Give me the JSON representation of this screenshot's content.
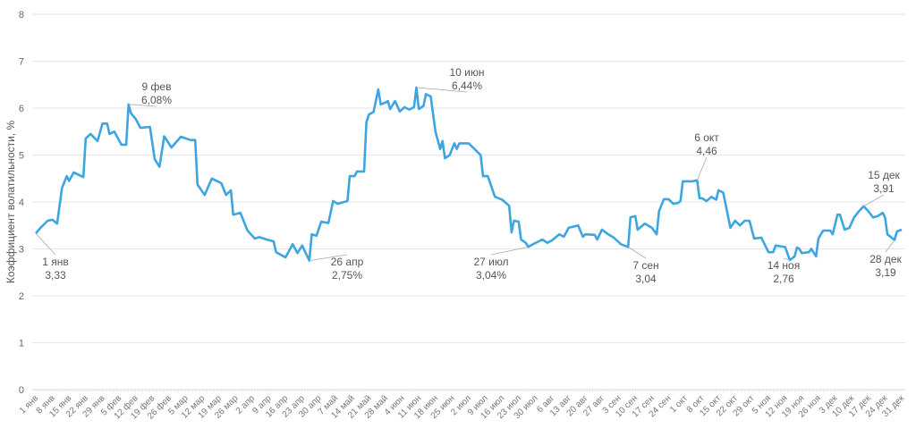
{
  "chart_data": {
    "type": "line",
    "title": "",
    "xlabel": "",
    "ylabel": "Коэффициент волатильности, %",
    "ylim": [
      0,
      8
    ],
    "yticks": [
      0,
      1,
      2,
      3,
      4,
      5,
      6,
      7,
      8
    ],
    "grid": true,
    "line_color": "#3da5e0",
    "x_unit": "day of year (0 = 1 янв)",
    "xticks": [
      "1 янв",
      "8 янв",
      "15 янв",
      "22 янв",
      "29 янв",
      "5 фев",
      "12 фев",
      "19 фев",
      "26 фев",
      "5 мар",
      "12 мар",
      "19 мар",
      "26 мар",
      "2 апр",
      "9 апр",
      "16 апр",
      "23 апр",
      "30 апр",
      "7 май",
      "14 май",
      "21 май",
      "28 май",
      "4 июн",
      "11 июн",
      "18 июн",
      "25 июн",
      "2 июл",
      "9 июл",
      "16 июл",
      "23 июл",
      "30 июл",
      "6 авг",
      "13 авг",
      "20 авг",
      "27 авг",
      "3 сен",
      "10 сен",
      "17 сен",
      "24 сен",
      "1 окт",
      "8 окт",
      "15 окт",
      "22 окт",
      "29 окт",
      "5 ноя",
      "12 ноя",
      "19 ноя",
      "26 ноя",
      "3 дек",
      "10 дек",
      "17 дек",
      "24 дек",
      "31 дек"
    ],
    "series": [
      {
        "name": "Коэффициент волатильности",
        "points": [
          [
            0,
            3.33
          ],
          [
            2,
            3.45
          ],
          [
            5,
            3.6
          ],
          [
            7,
            3.62
          ],
          [
            9,
            3.54
          ],
          [
            11,
            4.3
          ],
          [
            13,
            4.55
          ],
          [
            14,
            4.45
          ],
          [
            16,
            4.63
          ],
          [
            20,
            4.53
          ],
          [
            21,
            5.35
          ],
          [
            23,
            5.45
          ],
          [
            26,
            5.3
          ],
          [
            28,
            5.67
          ],
          [
            30,
            5.67
          ],
          [
            31,
            5.45
          ],
          [
            33,
            5.5
          ],
          [
            36,
            5.22
          ],
          [
            38,
            5.22
          ],
          [
            39,
            6.08
          ],
          [
            40,
            5.89
          ],
          [
            42,
            5.77
          ],
          [
            44,
            5.58
          ],
          [
            48,
            5.6
          ],
          [
            50,
            4.91
          ],
          [
            52,
            4.75
          ],
          [
            54,
            5.4
          ],
          [
            57,
            5.16
          ],
          [
            61,
            5.39
          ],
          [
            65,
            5.32
          ],
          [
            67,
            5.32
          ],
          [
            68,
            4.37
          ],
          [
            71,
            4.15
          ],
          [
            74,
            4.5
          ],
          [
            78,
            4.4
          ],
          [
            80,
            4.15
          ],
          [
            82,
            4.25
          ],
          [
            83,
            3.73
          ],
          [
            86,
            3.77
          ],
          [
            89,
            3.39
          ],
          [
            92,
            3.22
          ],
          [
            94,
            3.25
          ],
          [
            97,
            3.2
          ],
          [
            100,
            3.16
          ],
          [
            101,
            2.93
          ],
          [
            105,
            2.82
          ],
          [
            108,
            3.1
          ],
          [
            110,
            2.91
          ],
          [
            112,
            3.07
          ],
          [
            115,
            2.75
          ],
          [
            116,
            3.31
          ],
          [
            118,
            3.28
          ],
          [
            120,
            3.58
          ],
          [
            123,
            3.55
          ],
          [
            125,
            4.02
          ],
          [
            127,
            3.96
          ],
          [
            128,
            3.98
          ],
          [
            131,
            4.02
          ],
          [
            132,
            4.55
          ],
          [
            134,
            4.55
          ],
          [
            135,
            4.65
          ],
          [
            138,
            4.65
          ],
          [
            139,
            5.7
          ],
          [
            140,
            5.86
          ],
          [
            142,
            5.92
          ],
          [
            144,
            6.4
          ],
          [
            145,
            6.08
          ],
          [
            147,
            6.12
          ],
          [
            148,
            6.15
          ],
          [
            149,
            5.98
          ],
          [
            151,
            6.15
          ],
          [
            153,
            5.93
          ],
          [
            155,
            6.02
          ],
          [
            157,
            5.97
          ],
          [
            159,
            6.02
          ],
          [
            160,
            6.44
          ],
          [
            161,
            5.98
          ],
          [
            163,
            6.05
          ],
          [
            164,
            6.3
          ],
          [
            166,
            6.25
          ],
          [
            168,
            5.5
          ],
          [
            170,
            5.13
          ],
          [
            171,
            5.3
          ],
          [
            172,
            4.93
          ],
          [
            174,
            5.0
          ],
          [
            176,
            5.25
          ],
          [
            177,
            5.13
          ],
          [
            178,
            5.25
          ],
          [
            182,
            5.25
          ],
          [
            185,
            5.1
          ],
          [
            187,
            5.0
          ],
          [
            188,
            4.55
          ],
          [
            190,
            4.55
          ],
          [
            193,
            4.11
          ],
          [
            196,
            4.05
          ],
          [
            199,
            3.92
          ],
          [
            200,
            3.35
          ],
          [
            201,
            3.6
          ],
          [
            203,
            3.58
          ],
          [
            204,
            3.2
          ],
          [
            206,
            3.13
          ],
          [
            207,
            3.04
          ],
          [
            209,
            3.1
          ],
          [
            213,
            3.2
          ],
          [
            215,
            3.13
          ],
          [
            217,
            3.18
          ],
          [
            220,
            3.31
          ],
          [
            222,
            3.26
          ],
          [
            224,
            3.45
          ],
          [
            228,
            3.5
          ],
          [
            230,
            3.26
          ],
          [
            231,
            3.31
          ],
          [
            235,
            3.3
          ],
          [
            236,
            3.2
          ],
          [
            238,
            3.41
          ],
          [
            241,
            3.3
          ],
          [
            243,
            3.24
          ],
          [
            246,
            3.1
          ],
          [
            249,
            3.04
          ],
          [
            250,
            3.67
          ],
          [
            252,
            3.7
          ],
          [
            253,
            3.41
          ],
          [
            256,
            3.54
          ],
          [
            259,
            3.45
          ],
          [
            261,
            3.31
          ],
          [
            262,
            3.8
          ],
          [
            264,
            4.06
          ],
          [
            266,
            4.06
          ],
          [
            268,
            3.96
          ],
          [
            270,
            3.98
          ],
          [
            271,
            4.02
          ],
          [
            272,
            4.44
          ],
          [
            276,
            4.44
          ],
          [
            278,
            4.46
          ],
          [
            279,
            4.08
          ],
          [
            280,
            4.08
          ],
          [
            282,
            4.02
          ],
          [
            284,
            4.11
          ],
          [
            286,
            4.05
          ],
          [
            287,
            4.25
          ],
          [
            289,
            4.2
          ],
          [
            292,
            3.45
          ],
          [
            294,
            3.6
          ],
          [
            296,
            3.5
          ],
          [
            298,
            3.6
          ],
          [
            300,
            3.6
          ],
          [
            302,
            3.22
          ],
          [
            305,
            3.24
          ],
          [
            308,
            2.93
          ],
          [
            310,
            2.93
          ],
          [
            311,
            3.07
          ],
          [
            315,
            3.04
          ],
          [
            317,
            2.76
          ],
          [
            319,
            2.84
          ],
          [
            320,
            3.03
          ],
          [
            321,
            3.0
          ],
          [
            322,
            2.91
          ],
          [
            325,
            2.93
          ],
          [
            326,
            3.0
          ],
          [
            328,
            2.84
          ],
          [
            329,
            3.22
          ],
          [
            331,
            3.39
          ],
          [
            334,
            3.39
          ],
          [
            335,
            3.31
          ],
          [
            337,
            3.73
          ],
          [
            338,
            3.73
          ],
          [
            340,
            3.41
          ],
          [
            342,
            3.45
          ],
          [
            344,
            3.67
          ],
          [
            346,
            3.8
          ],
          [
            348,
            3.91
          ],
          [
            350,
            3.8
          ],
          [
            352,
            3.67
          ],
          [
            354,
            3.7
          ],
          [
            356,
            3.77
          ],
          [
            357,
            3.67
          ],
          [
            358,
            3.31
          ],
          [
            361,
            3.19
          ],
          [
            362,
            3.37
          ],
          [
            364,
            3.41
          ]
        ]
      }
    ],
    "annotations": [
      {
        "day": 0,
        "value": 3.33,
        "date": "1 янв",
        "label": "3,33"
      },
      {
        "day": 39,
        "value": 6.08,
        "date": "9 фев",
        "label": "6,08%"
      },
      {
        "day": 115,
        "value": 2.75,
        "date": "26 апр",
        "label": "2,75%"
      },
      {
        "day": 160,
        "value": 6.44,
        "date": "10 июн",
        "label": "6,44%"
      },
      {
        "day": 207,
        "value": 3.04,
        "date": "27 июл",
        "label": "3,04%"
      },
      {
        "day": 249,
        "value": 3.04,
        "date": "7 сен",
        "label": "3,04"
      },
      {
        "day": 278,
        "value": 4.46,
        "date": "6 окт",
        "label": "4,46"
      },
      {
        "day": 317,
        "value": 2.76,
        "date": "14 ноя",
        "label": "2,76"
      },
      {
        "day": 348,
        "value": 3.91,
        "date": "15 дек",
        "label": "3,91"
      },
      {
        "day": 361,
        "value": 3.19,
        "date": "28 дек",
        "label": "3,19"
      }
    ]
  }
}
